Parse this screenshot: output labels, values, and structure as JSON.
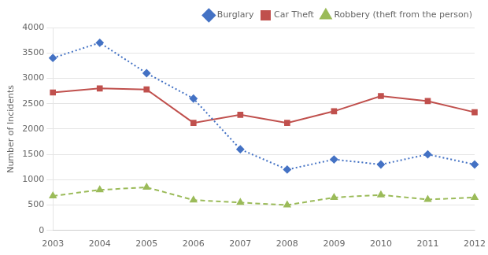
{
  "chart_data": {
    "type": "line",
    "categories": [
      "2003",
      "2004",
      "2005",
      "2006",
      "2007",
      "2008",
      "2009",
      "2010",
      "2011",
      "2012"
    ],
    "series": [
      {
        "name": "Burglary",
        "color": "#4472C4",
        "marker": "diamond",
        "line_style": "dotted",
        "values": [
          3400,
          3700,
          3100,
          2600,
          1600,
          1200,
          1400,
          1300,
          1500,
          1300
        ]
      },
      {
        "name": "Car Theft",
        "color": "#C0504D",
        "marker": "square",
        "line_style": "solid",
        "values": [
          2720,
          2800,
          2780,
          2120,
          2280,
          2120,
          2350,
          2650,
          2550,
          2330
        ]
      },
      {
        "name": "Robbery (theft from the person)",
        "color": "#9BBB59",
        "marker": "triangle",
        "line_style": "dashed",
        "values": [
          680,
          800,
          850,
          600,
          550,
          500,
          650,
          700,
          610,
          650
        ]
      }
    ],
    "ylabel": "Number of Incidents",
    "ylim": [
      0,
      4000
    ],
    "yticks": [
      0,
      500,
      1000,
      1500,
      2000,
      2500,
      3000,
      3500,
      4000
    ],
    "grid": true,
    "legend": "top"
  }
}
